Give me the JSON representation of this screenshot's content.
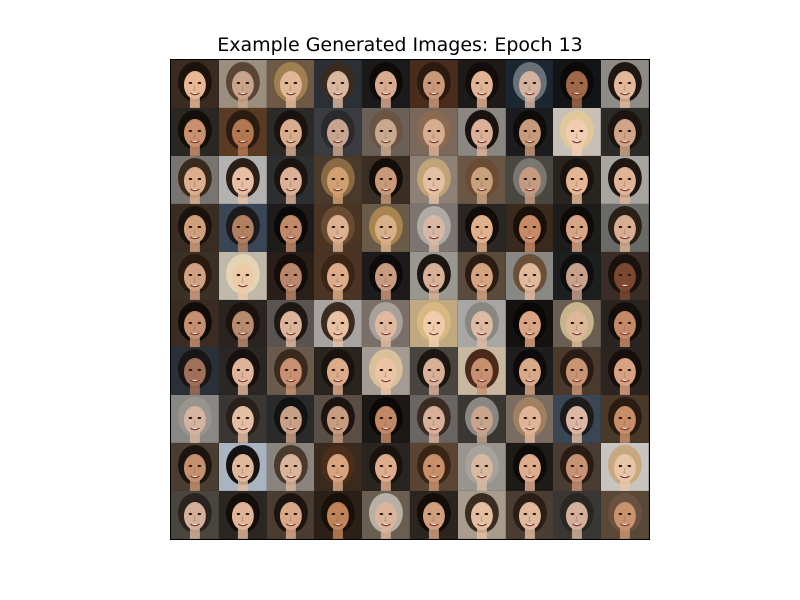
{
  "figure": {
    "title": "Example Generated Images: Epoch 13"
  },
  "grid": {
    "rows": 10,
    "cols": 10,
    "cells": [
      {
        "bg": "#3a2a20",
        "skin": "#e8b896",
        "hair": "#1c120c"
      },
      {
        "bg": "#9a8e7e",
        "skin": "#c8a48a",
        "hair": "#5a4636"
      },
      {
        "bg": "#6e5a44",
        "skin": "#e0b898",
        "hair": "#a08050"
      },
      {
        "bg": "#2a3036",
        "skin": "#d8b8a0",
        "hair": "#3a2a20"
      },
      {
        "bg": "#1a1a1a",
        "skin": "#d8aa90",
        "hair": "#0e0a08"
      },
      {
        "bg": "#4a2c1c",
        "skin": "#c89878",
        "hair": "#2a1a10"
      },
      {
        "bg": "#1e1a18",
        "skin": "#e0b494",
        "hair": "#120c0a"
      },
      {
        "bg": "#1c2630",
        "skin": "#d4b2a0",
        "hair": "#6a7078"
      },
      {
        "bg": "#121416",
        "skin": "#a06848",
        "hair": "#0c0a08"
      },
      {
        "bg": "#8e8a86",
        "skin": "#e2b89a",
        "hair": "#1e1612"
      },
      {
        "bg": "#2a2622",
        "skin": "#c8906e",
        "hair": "#140e0a"
      },
      {
        "bg": "#5a3a22",
        "skin": "#b47850",
        "hair": "#2a1c12"
      },
      {
        "bg": "#2c2a28",
        "skin": "#d8ac8c",
        "hair": "#1a1210"
      },
      {
        "bg": "#3a3c40",
        "skin": "#c8a490",
        "hair": "#2a2a2c"
      },
      {
        "bg": "#6a6058",
        "skin": "#c8a88e",
        "hair": "#6a5444"
      },
      {
        "bg": "#7a685a",
        "skin": "#d8ae90",
        "hair": "#8a6a50"
      },
      {
        "bg": "#8a8682",
        "skin": "#dcb096",
        "hair": "#1a1210"
      },
      {
        "bg": "#1c1c1e",
        "skin": "#c89a7c",
        "hair": "#0e0c0a"
      },
      {
        "bg": "#c8c0b6",
        "skin": "#f0cdb0",
        "hair": "#e0c89a"
      },
      {
        "bg": "#2c2a26",
        "skin": "#d0a488",
        "hair": "#1c1410"
      },
      {
        "bg": "#7a7470",
        "skin": "#dcae8e",
        "hair": "#3a2a1c"
      },
      {
        "bg": "#b4b2b0",
        "skin": "#e6bea4",
        "hair": "#2a1e16"
      },
      {
        "bg": "#2c2e30",
        "skin": "#dcb096",
        "hair": "#1a1410"
      },
      {
        "bg": "#4a3a2c",
        "skin": "#d0a070",
        "hair": "#8a6a44"
      },
      {
        "bg": "#3a2e24",
        "skin": "#c89a7a",
        "hair": "#140e0a"
      },
      {
        "bg": "#8e8074",
        "skin": "#e4c0a2",
        "hair": "#c0a478"
      },
      {
        "bg": "#6a5644",
        "skin": "#c8a07c",
        "hair": "#6a4c32"
      },
      {
        "bg": "#4a4642",
        "skin": "#c49a80",
        "hair": "#7a7672"
      },
      {
        "bg": "#2a2420",
        "skin": "#e4b694",
        "hair": "#1a120e"
      },
      {
        "bg": "#a8a4a0",
        "skin": "#e0b496",
        "hair": "#1e1612"
      },
      {
        "bg": "#3a2c22",
        "skin": "#d0a07c",
        "hair": "#1a120c"
      },
      {
        "bg": "#3a4656",
        "skin": "#b08060",
        "hair": "#1c1a1c"
      },
      {
        "bg": "#1e1c1a",
        "skin": "#c08a6a",
        "hair": "#0a0808"
      },
      {
        "bg": "#4a3424",
        "skin": "#dcb090",
        "hair": "#6a4a30"
      },
      {
        "bg": "#6a5a48",
        "skin": "#d8b088",
        "hair": "#a88450"
      },
      {
        "bg": "#7c7470",
        "skin": "#d8b8a4",
        "hair": "#b0aaa4"
      },
      {
        "bg": "#2a2624",
        "skin": "#e0b08c",
        "hair": "#120c0a"
      },
      {
        "bg": "#3a2a1e",
        "skin": "#c88a66",
        "hair": "#1a100a"
      },
      {
        "bg": "#1e1c1a",
        "skin": "#d8a486",
        "hair": "#0e0a08"
      },
      {
        "bg": "#6a6a66",
        "skin": "#d8ae92",
        "hair": "#2a2018"
      },
      {
        "bg": "#3a3026",
        "skin": "#d0a282",
        "hair": "#2a1a10"
      },
      {
        "bg": "#c0b8a8",
        "skin": "#eccaa8",
        "hair": "#e4d4b4"
      },
      {
        "bg": "#2a1e18",
        "skin": "#b8866a",
        "hair": "#140c08"
      },
      {
        "bg": "#4c3424",
        "skin": "#dcac88",
        "hair": "#3a2414"
      },
      {
        "bg": "#1c1a1a",
        "skin": "#c89a80",
        "hair": "#0c0a0a"
      },
      {
        "bg": "#9a9690",
        "skin": "#d8b098",
        "hair": "#1c1612"
      },
      {
        "bg": "#5a4a3c",
        "skin": "#d4a480",
        "hair": "#2a1c12"
      },
      {
        "bg": "#8a8884",
        "skin": "#e0b89a",
        "hair": "#6a5038"
      },
      {
        "bg": "#1c1e20",
        "skin": "#c8a08c",
        "hair": "#0e0e10"
      },
      {
        "bg": "#3a2c26",
        "skin": "#7a4830",
        "hair": "#1a120e"
      },
      {
        "bg": "#3a2c22",
        "skin": "#c49070",
        "hair": "#120c08"
      },
      {
        "bg": "#2a2420",
        "skin": "#b88a70",
        "hair": "#1a120e"
      },
      {
        "bg": "#5a5450",
        "skin": "#dcb49a",
        "hair": "#1e1814"
      },
      {
        "bg": "#a8a2a0",
        "skin": "#e8c0a4",
        "hair": "#3a2a20"
      },
      {
        "bg": "#7a7068",
        "skin": "#e0b8a0",
        "hair": "#a8a09a"
      },
      {
        "bg": "#c0a880",
        "skin": "#f0ccac",
        "hair": "#d8b880"
      },
      {
        "bg": "#a8a6a4",
        "skin": "#dcbaa4",
        "hair": "#8a8680"
      },
      {
        "bg": "#141210",
        "skin": "#d8a484",
        "hair": "#0a0806"
      },
      {
        "bg": "#6a5e52",
        "skin": "#dcb898",
        "hair": "#c8b48a"
      },
      {
        "bg": "#2a2420",
        "skin": "#c48a68",
        "hair": "#140e0a"
      },
      {
        "bg": "#2a3038",
        "skin": "#a07058",
        "hair": "#1a1616"
      },
      {
        "bg": "#2a2624",
        "skin": "#e0b49a",
        "hair": "#161010"
      },
      {
        "bg": "#6a5a4c",
        "skin": "#c89070",
        "hair": "#3a2a1e"
      },
      {
        "bg": "#2a2420",
        "skin": "#dcac8a",
        "hair": "#1a120e"
      },
      {
        "bg": "#a49c94",
        "skin": "#ecc4a4",
        "hair": "#d8c09a"
      },
      {
        "bg": "#4a4440",
        "skin": "#d8b098",
        "hair": "#1c1612"
      },
      {
        "bg": "#c8b8a0",
        "skin": "#c89070",
        "hair": "#4a2a1a"
      },
      {
        "bg": "#1e1c1c",
        "skin": "#d8a888",
        "hair": "#0c0a0a"
      },
      {
        "bg": "#4a3a2e",
        "skin": "#c89474",
        "hair": "#2a1c14"
      },
      {
        "bg": "#2c2420",
        "skin": "#d8a282",
        "hair": "#160e0a"
      },
      {
        "bg": "#8a8884",
        "skin": "#d4b4a0",
        "hair": "#9a948e"
      },
      {
        "bg": "#3a3634",
        "skin": "#e4bea4",
        "hair": "#2a201a"
      },
      {
        "bg": "#2a2a2a",
        "skin": "#c8a088",
        "hair": "#121212"
      },
      {
        "bg": "#5a4e44",
        "skin": "#c89c80",
        "hair": "#1c1410"
      },
      {
        "bg": "#1c1816",
        "skin": "#c08866",
        "hair": "#0c0806"
      },
      {
        "bg": "#6a6462",
        "skin": "#d8b09a",
        "hair": "#3a2c22"
      },
      {
        "bg": "#3a3632",
        "skin": "#c8a48c",
        "hair": "#8a8682"
      },
      {
        "bg": "#7a6c60",
        "skin": "#e0b498",
        "hair": "#a08060"
      },
      {
        "bg": "#3a4654",
        "skin": "#dcb8a4",
        "hair": "#1c1a1a"
      },
      {
        "bg": "#4a3828",
        "skin": "#c88e6a",
        "hair": "#2a1c12"
      },
      {
        "bg": "#4a3c30",
        "skin": "#c49070",
        "hair": "#1c140e"
      },
      {
        "bg": "#a8b4c0",
        "skin": "#e0b89c",
        "hair": "#141212"
      },
      {
        "bg": "#8a847e",
        "skin": "#d8b49a",
        "hair": "#4a3a2e"
      },
      {
        "bg": "#3a2a1e",
        "skin": "#d8a480",
        "hair": "#4a2e1a"
      },
      {
        "bg": "#2a2420",
        "skin": "#dcac8c",
        "hair": "#1a120e"
      },
      {
        "bg": "#5a4434",
        "skin": "#c8906a",
        "hair": "#3a2416"
      },
      {
        "bg": "#9a948e",
        "skin": "#d8b8a0",
        "hair": "#a8a29c"
      },
      {
        "bg": "#1e1a18",
        "skin": "#dcac8c",
        "hair": "#0e0a08"
      },
      {
        "bg": "#4a3c32",
        "skin": "#c89274",
        "hair": "#2a1c14"
      },
      {
        "bg": "#c8c4c0",
        "skin": "#e8c4a8",
        "hair": "#c8a880"
      },
      {
        "bg": "#4a463e",
        "skin": "#d4b09a",
        "hair": "#2a2420"
      },
      {
        "bg": "#2a2622",
        "skin": "#e0b498",
        "hair": "#140e0a"
      },
      {
        "bg": "#4a3c30",
        "skin": "#d8a888",
        "hair": "#1c1410"
      },
      {
        "bg": "#2a2018",
        "skin": "#c08258",
        "hair": "#1a100a"
      },
      {
        "bg": "#6a5e52",
        "skin": "#dcb49c",
        "hair": "#b8b0a4"
      },
      {
        "bg": "#2c241e",
        "skin": "#d0a07e",
        "hair": "#140c08"
      },
      {
        "bg": "#a89c8c",
        "skin": "#e4bea0",
        "hair": "#3a2c20"
      },
      {
        "bg": "#4a3e34",
        "skin": "#e0b89c",
        "hair": "#2a1e16"
      },
      {
        "bg": "#3a3634",
        "skin": "#d4b09c",
        "hair": "#2a2622"
      },
      {
        "bg": "#5a4836",
        "skin": "#c89470",
        "hair": "#6a5040"
      }
    ]
  }
}
